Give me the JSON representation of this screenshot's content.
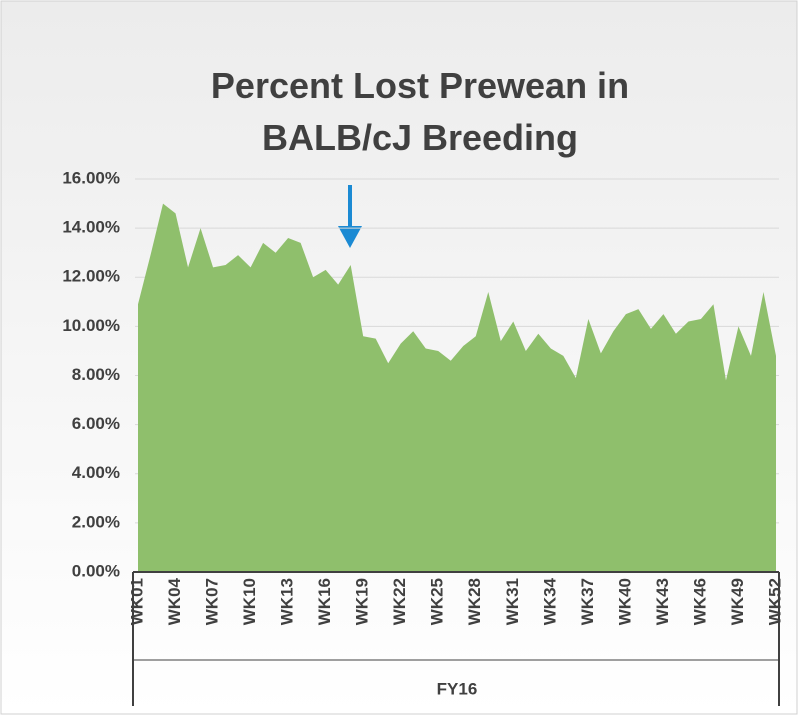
{
  "chart_data": {
    "type": "area",
    "title": "Percent Lost Prewean in BALB/cJ Breeding",
    "categories": [
      "WK01",
      null,
      null,
      "WK04",
      null,
      null,
      "WK07",
      null,
      null,
      "WK10",
      null,
      null,
      "WK13",
      null,
      null,
      "WK16",
      null,
      null,
      "WK19",
      null,
      null,
      "WK22",
      null,
      null,
      "WK25",
      null,
      null,
      "WK28",
      null,
      null,
      "WK31",
      null,
      null,
      "WK34",
      null,
      null,
      "WK37",
      null,
      null,
      "WK40",
      null,
      null,
      "WK43",
      null,
      null,
      "WK46",
      null,
      null,
      "WK49",
      null,
      null,
      "WK52"
    ],
    "group_label": "FY16",
    "values": [
      10.9,
      12.9,
      15.0,
      14.6,
      12.4,
      14.0,
      12.4,
      12.5,
      12.9,
      12.4,
      13.4,
      13.0,
      13.6,
      13.4,
      12.0,
      12.3,
      11.7,
      12.5,
      9.6,
      9.5,
      8.5,
      9.3,
      9.8,
      9.1,
      9.0,
      8.6,
      9.2,
      9.6,
      11.4,
      9.4,
      10.2,
      9.0,
      9.7,
      9.1,
      8.8,
      7.9,
      10.3,
      8.9,
      9.8,
      10.5,
      10.7,
      9.9,
      10.5,
      9.7,
      10.2,
      10.3,
      10.9,
      7.8,
      10.0,
      8.8,
      11.4,
      8.8
    ],
    "color": "#8fbf6c",
    "ylim": [
      0,
      16
    ],
    "yticks": [
      {
        "value": 0,
        "label": "0.00%"
      },
      {
        "value": 2,
        "label": "2.00%"
      },
      {
        "value": 4,
        "label": "4.00%"
      },
      {
        "value": 6,
        "label": "6.00%"
      },
      {
        "value": 8,
        "label": "8.00%"
      },
      {
        "value": 10,
        "label": "10.00%"
      },
      {
        "value": 12,
        "label": "12.00%"
      },
      {
        "value": 14,
        "label": "14.00%"
      },
      {
        "value": 16,
        "label": "16.00%"
      }
    ],
    "grid": true
  }
}
